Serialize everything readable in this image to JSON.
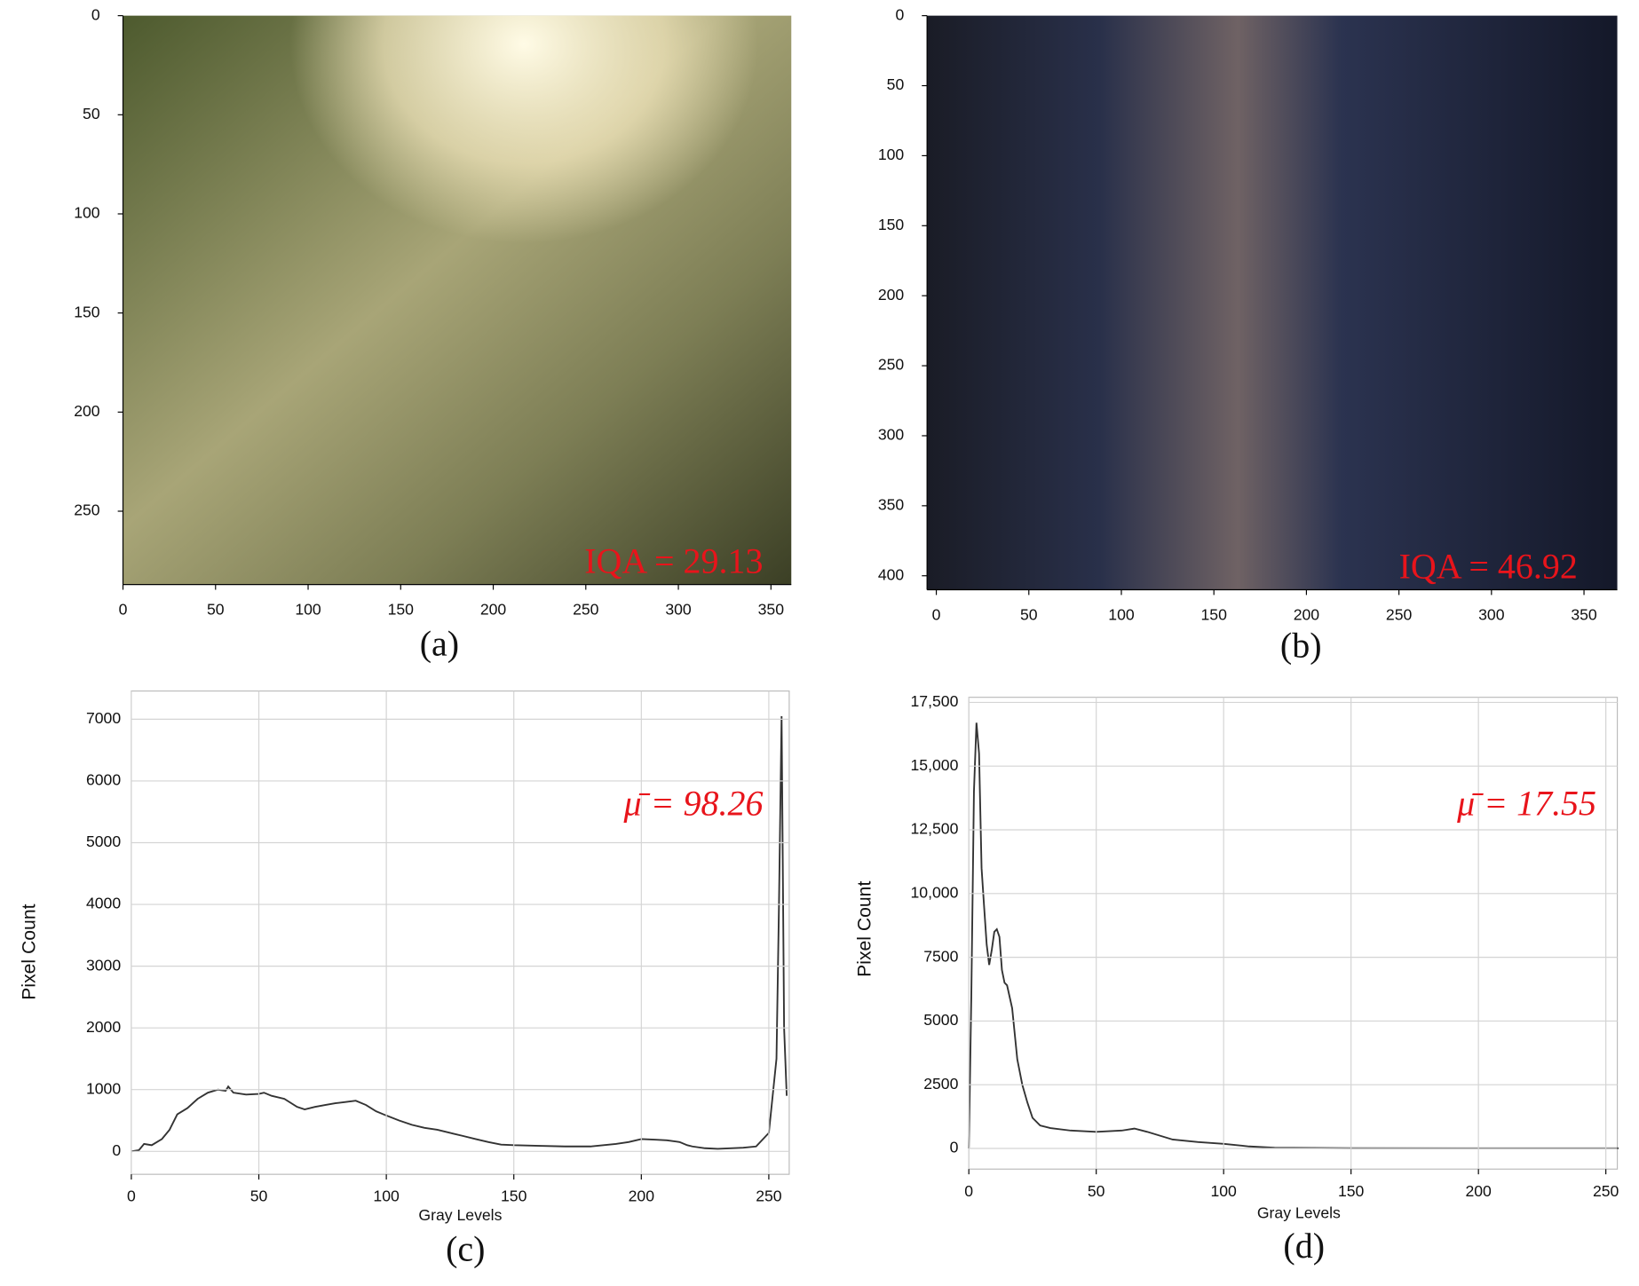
{
  "chart_data": [
    {
      "type": "image",
      "annotation": "IQA = 29.13",
      "caption": "(a)",
      "xlim": [
        0,
        361
      ],
      "xticks": [
        0,
        50,
        100,
        150,
        200,
        250,
        300,
        350
      ],
      "ylim": [
        0,
        287
      ],
      "yticks": [
        0,
        50,
        100,
        150,
        200,
        250
      ],
      "y_inverted": true
    },
    {
      "type": "image",
      "annotation": "IQA = 46.92",
      "caption": "(b)",
      "xlim": [
        -5,
        368
      ],
      "xticks": [
        0,
        50,
        100,
        150,
        200,
        250,
        300,
        350
      ],
      "ylim": [
        0,
        410
      ],
      "yticks": [
        0,
        50,
        100,
        150,
        200,
        250,
        300,
        350,
        400
      ],
      "y_inverted": true
    },
    {
      "type": "line",
      "annotation": "μ̄ = 98.26",
      "caption": "(c)",
      "xlabel": "Gray Levels",
      "ylabel": "Pixel Count",
      "x": [
        0,
        3,
        5,
        8,
        12,
        15,
        18,
        22,
        26,
        30,
        34,
        37,
        38,
        40,
        45,
        50,
        52,
        55,
        60,
        65,
        68,
        72,
        76,
        80,
        84,
        88,
        92,
        96,
        100,
        105,
        110,
        115,
        120,
        125,
        130,
        135,
        140,
        145,
        150,
        160,
        170,
        180,
        190,
        195,
        200,
        205,
        210,
        215,
        218,
        220,
        225,
        230,
        240,
        245,
        250,
        253,
        254,
        255,
        256,
        257
      ],
      "series": [
        {
          "color": "#333333",
          "values": [
            0,
            20,
            120,
            100,
            200,
            350,
            600,
            700,
            850,
            950,
            1000,
            980,
            1050,
            950,
            920,
            930,
            950,
            900,
            850,
            720,
            680,
            720,
            750,
            780,
            800,
            820,
            750,
            650,
            580,
            500,
            430,
            380,
            350,
            300,
            250,
            200,
            150,
            110,
            100,
            90,
            80,
            80,
            120,
            150,
            200,
            190,
            180,
            150,
            100,
            80,
            50,
            40,
            60,
            80,
            300,
            1500,
            4000,
            7050,
            2000,
            900
          ]
        }
      ],
      "xlim": [
        0,
        258
      ],
      "xticks": [
        0,
        50,
        100,
        150,
        200,
        250
      ],
      "ylim": [
        -372,
        7457
      ],
      "yticks": [
        0,
        1000,
        2000,
        3000,
        4000,
        5000,
        6000,
        7000
      ],
      "grid": true
    },
    {
      "type": "line",
      "annotation": "μ̄ = 17.55",
      "caption": "(d)",
      "xlabel": "Gray Levels",
      "ylabel": "Pixel Count",
      "x": [
        0,
        1,
        2,
        3,
        4,
        5,
        6,
        7,
        8,
        9,
        10,
        11,
        12,
        13,
        14,
        15,
        17,
        19,
        21,
        23,
        25,
        28,
        32,
        40,
        50,
        60,
        65,
        70,
        80,
        90,
        100,
        110,
        120,
        150,
        200,
        255
      ],
      "series": [
        {
          "color": "#333333",
          "values": [
            0,
            6000,
            14000,
            16700,
            15500,
            11000,
            9500,
            8000,
            7200,
            7800,
            8500,
            8600,
            8300,
            7000,
            6500,
            6400,
            5500,
            3500,
            2500,
            1800,
            1200,
            900,
            800,
            700,
            650,
            700,
            780,
            650,
            350,
            250,
            180,
            80,
            30,
            10,
            5,
            5
          ]
        }
      ],
      "xlim": [
        0,
        254.5
      ],
      "xticks": [
        0,
        50,
        100,
        150,
        200,
        250
      ],
      "ylim": [
        -810,
        17700
      ],
      "yticks": [
        0,
        2500,
        5000,
        7500,
        {
          "value": 10000,
          "label": "10,000"
        },
        {
          "value": 12500,
          "label": "12,500"
        },
        {
          "value": 15000,
          "label": "15,000"
        },
        {
          "value": 17500,
          "label": "17,500"
        }
      ],
      "grid": true
    }
  ]
}
